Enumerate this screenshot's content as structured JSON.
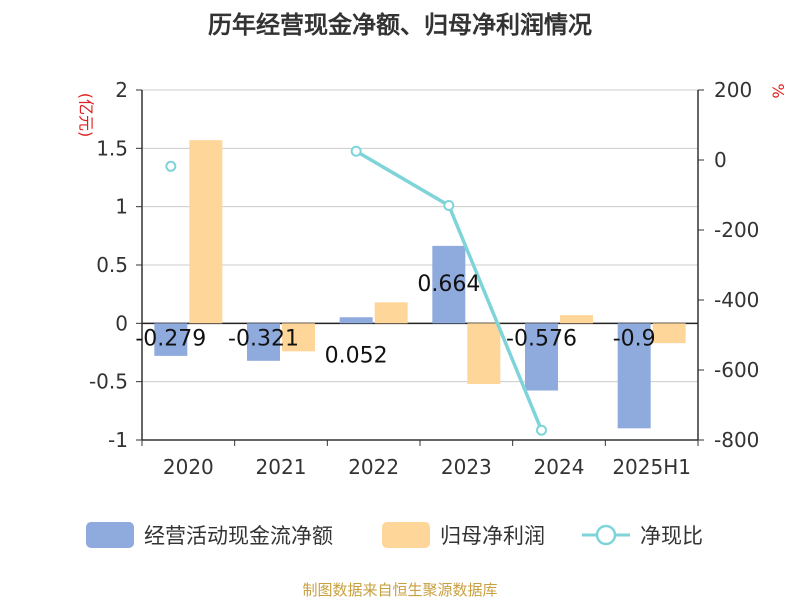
{
  "chart_data": {
    "type": "bar",
    "title": "历年经营现金净额、归母净利润情况",
    "categories": [
      "2020",
      "2021",
      "2022",
      "2023",
      "2024",
      "2025H1"
    ],
    "left_axis": {
      "unit": "(亿元)",
      "ticks": [
        "2",
        "1.5",
        "1",
        "0.5",
        "0",
        "-0.5",
        "-1"
      ],
      "range": [
        -1,
        2
      ]
    },
    "right_axis": {
      "unit": "%",
      "ticks": [
        "200",
        "0",
        "-200",
        "-400",
        "-600",
        "-800"
      ],
      "range": [
        -800,
        200
      ]
    },
    "series": [
      {
        "name": "经营活动现金流净额",
        "kind": "bar",
        "axis": "left",
        "color": "#8faadc",
        "values": [
          -0.279,
          -0.321,
          0.052,
          0.664,
          -0.576,
          -0.9
        ],
        "labels": [
          "-0.279",
          "-0.321",
          "0.052",
          "0.664",
          "-0.576",
          "-0.9"
        ]
      },
      {
        "name": "归母净利润",
        "kind": "bar",
        "axis": "left",
        "color": "#ffd699",
        "values": [
          1.57,
          -0.24,
          0.18,
          -0.52,
          0.07,
          -0.17
        ]
      },
      {
        "name": "净现比",
        "kind": "line",
        "axis": "right",
        "color": "#7fd4d9",
        "values": [
          -18,
          null,
          25,
          -130,
          -772,
          null
        ]
      }
    ],
    "grid": true,
    "legend_position": "bottom"
  },
  "source": "制图数据来自恒生聚源数据库"
}
